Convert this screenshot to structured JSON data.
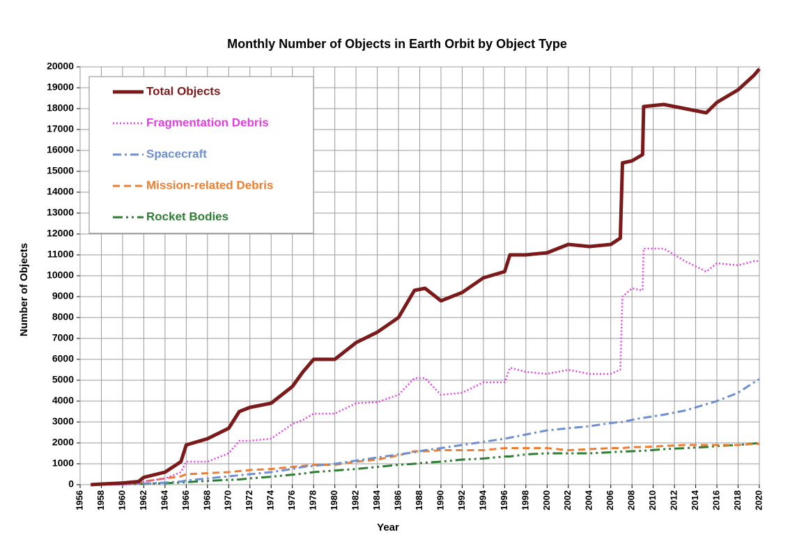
{
  "chart_data": {
    "type": "line",
    "title": "Monthly Number of Objects in Earth Orbit by Object Type",
    "x_label": "Year",
    "y_label": "Number of Objects",
    "x": [
      1957,
      1958,
      1960,
      1961.5,
      1962,
      1964,
      1965.5,
      1966,
      1968,
      1970,
      1971,
      1972,
      1974,
      1976,
      1977,
      1978,
      1980,
      1982,
      1984,
      1986,
      1987.5,
      1988.5,
      1990,
      1992,
      1994,
      1996,
      1996.5,
      1998,
      2000,
      2002,
      2004,
      2006,
      2006.9,
      2007.1,
      2008,
      2009,
      2009.1,
      2011,
      2013,
      2015,
      2016,
      2018,
      2019.5,
      2020
    ],
    "series": [
      {
        "name": "Total Objects",
        "color": "#7b1a1a",
        "values": [
          0,
          30,
          80,
          150,
          350,
          600,
          1100,
          1900,
          2200,
          2700,
          3500,
          3700,
          3900,
          4700,
          5400,
          6000,
          6000,
          6800,
          7300,
          8000,
          9300,
          9400,
          8800,
          9200,
          9900,
          10200,
          11000,
          11000,
          11100,
          11500,
          11400,
          11500,
          11800,
          15400,
          15500,
          15800,
          18100,
          18200,
          18000,
          17800,
          18300,
          18900,
          19600,
          19900
        ]
      },
      {
        "name": "Fragmentation Debris",
        "color": "#e040e0",
        "values": [
          0,
          0,
          0,
          50,
          150,
          300,
          600,
          1100,
          1100,
          1500,
          2100,
          2100,
          2200,
          2900,
          3100,
          3400,
          3400,
          3900,
          3950,
          4300,
          5100,
          5100,
          4300,
          4400,
          4900,
          4900,
          5600,
          5400,
          5300,
          5500,
          5300,
          5300,
          5500,
          9000,
          9400,
          9300,
          11300,
          11300,
          10700,
          10200,
          10600,
          10500,
          10700,
          10700
        ]
      },
      {
        "name": "Spacecraft",
        "color": "#6d8fd0",
        "values": [
          0,
          5,
          20,
          40,
          50,
          100,
          150,
          200,
          300,
          400,
          450,
          500,
          600,
          750,
          850,
          900,
          1000,
          1150,
          1300,
          1450,
          1550,
          1650,
          1750,
          1900,
          2050,
          2200,
          2250,
          2400,
          2600,
          2700,
          2800,
          2950,
          3000,
          3000,
          3100,
          3200,
          3200,
          3350,
          3550,
          3850,
          4000,
          4400,
          4900,
          5050
        ]
      },
      {
        "name": "Mission-related Debris",
        "color": "#ed7d31",
        "values": [
          0,
          10,
          50,
          100,
          150,
          300,
          400,
          500,
          550,
          600,
          650,
          700,
          750,
          850,
          900,
          950,
          950,
          1100,
          1200,
          1400,
          1600,
          1600,
          1650,
          1650,
          1650,
          1750,
          1750,
          1750,
          1750,
          1650,
          1700,
          1750,
          1750,
          1750,
          1800,
          1800,
          1800,
          1850,
          1900,
          1900,
          1900,
          1900,
          1950,
          1950
        ]
      },
      {
        "name": "Rocket Bodies",
        "color": "#2e7d32",
        "values": [
          0,
          5,
          20,
          30,
          40,
          70,
          100,
          120,
          180,
          230,
          250,
          300,
          380,
          480,
          530,
          600,
          680,
          750,
          850,
          950,
          1000,
          1050,
          1100,
          1200,
          1250,
          1350,
          1350,
          1450,
          1500,
          1500,
          1500,
          1550,
          1580,
          1580,
          1600,
          1620,
          1620,
          1700,
          1750,
          1800,
          1850,
          1900,
          1970,
          2000
        ]
      }
    ],
    "xlim": [
      1956,
      2020
    ],
    "xticks": [
      1956,
      1958,
      1960,
      1962,
      1964,
      1966,
      1968,
      1970,
      1972,
      1974,
      1976,
      1978,
      1980,
      1982,
      1984,
      1986,
      1988,
      1990,
      1992,
      1994,
      1996,
      1998,
      2000,
      2002,
      2004,
      2006,
      2008,
      2010,
      2012,
      2014,
      2016,
      2018,
      2020
    ],
    "ylim": [
      0,
      20000
    ],
    "yticks": [
      0,
      1000,
      2000,
      3000,
      4000,
      5000,
      6000,
      7000,
      8000,
      9000,
      10000,
      11000,
      12000,
      13000,
      14000,
      15000,
      16000,
      17000,
      18000,
      19000,
      20000
    ],
    "grid": true,
    "legend": "upper left"
  }
}
